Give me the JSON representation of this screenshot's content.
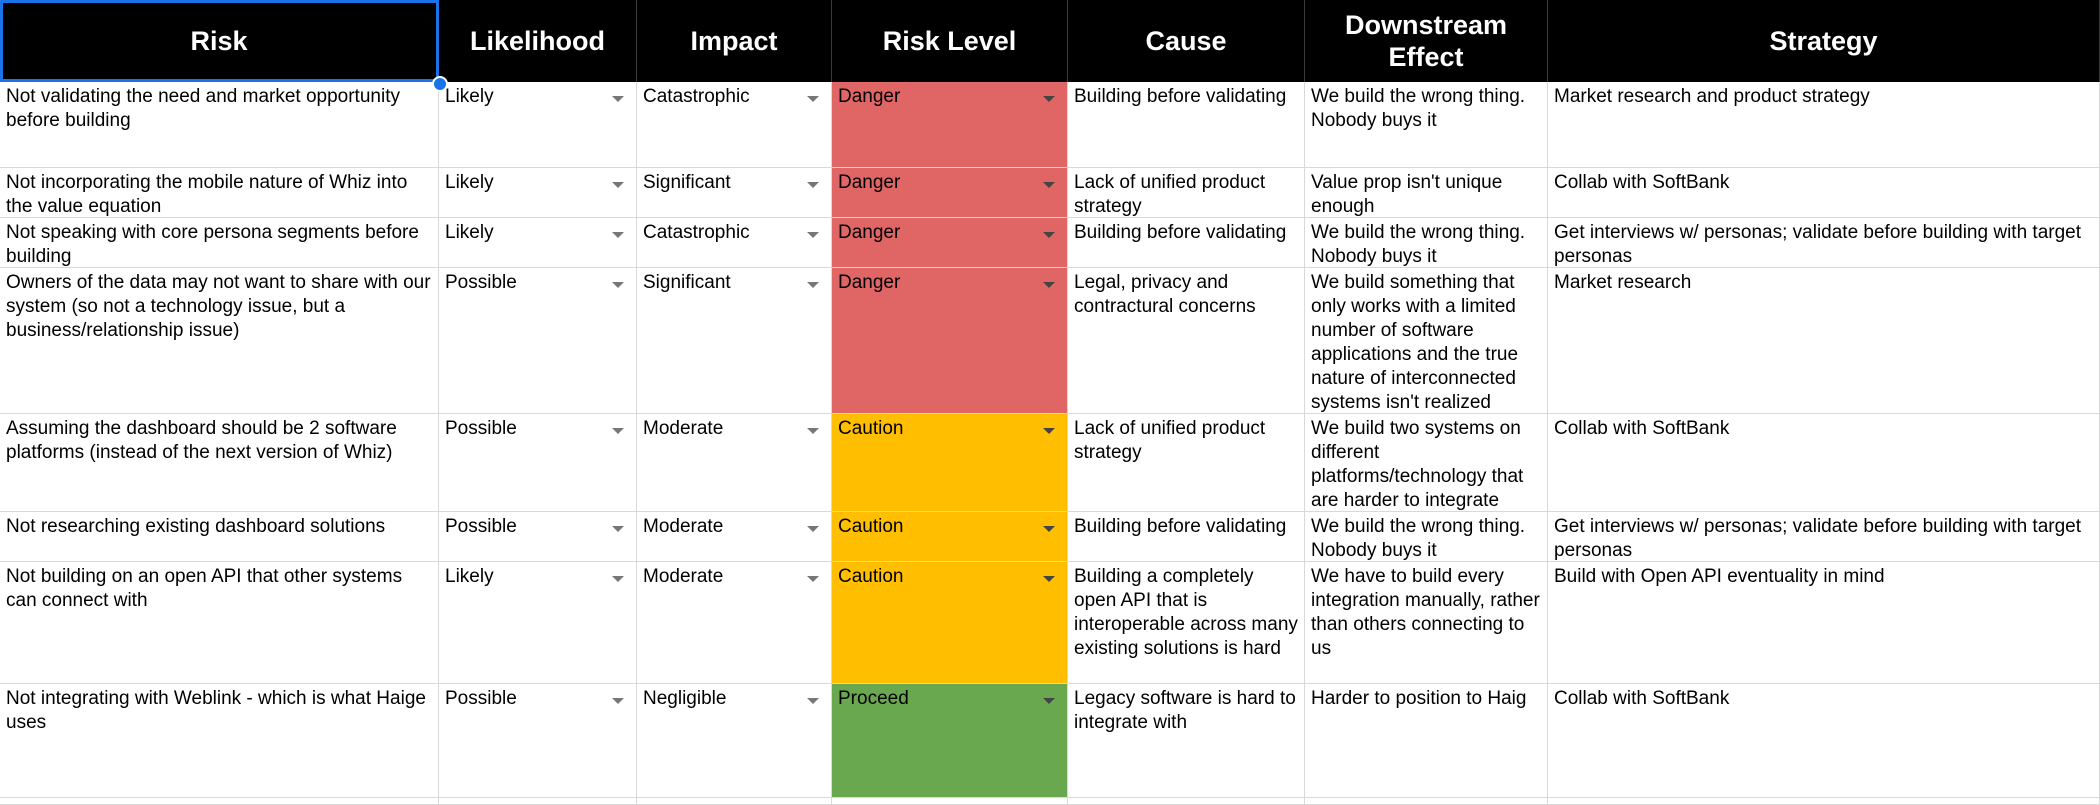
{
  "headers": [
    "Risk",
    "Likelihood",
    "Impact",
    "Risk Level",
    "Cause",
    "Downstream Effect",
    "Strategy"
  ],
  "level_colors": {
    "Danger": "#e06666",
    "Caution": "#ffbf00",
    "Proceed": "#6aa84f"
  },
  "rows": [
    {
      "risk": "Not validating the need and market opportunity before building",
      "likelihood": "Likely",
      "impact": "Catastrophic",
      "level": "Danger",
      "cause": "Building before validating",
      "effect": "We build the wrong thing. Nobody buys it",
      "strategy": "Market research and product strategy"
    },
    {
      "risk": "Not incorporating the mobile nature of Whiz into the value equation",
      "likelihood": "Likely",
      "impact": "Significant",
      "level": "Danger",
      "cause": "Lack of unified product strategy",
      "effect": "Value prop isn't unique enough",
      "strategy": "Collab with SoftBank"
    },
    {
      "risk": "Not speaking with core persona segments before building",
      "likelihood": "Likely",
      "impact": "Catastrophic",
      "level": "Danger",
      "cause": "Building before validating",
      "effect": "We build the wrong thing. Nobody buys it",
      "strategy": "Get interviews w/ personas; validate before building with target personas"
    },
    {
      "risk": "Owners of the data may not want to share with our system (so not a technology issue, but a business/relationship issue)",
      "likelihood": "Possible",
      "impact": "Significant",
      "level": "Danger",
      "cause": "Legal, privacy and contractural concerns",
      "effect": "We build something that only works with a limited number of software applications and the true nature of interconnected systems isn't realized",
      "strategy": "Market research"
    },
    {
      "risk": "Assuming the dashboard should be 2 software platforms (instead of the next version of Whiz)",
      "likelihood": "Possible",
      "impact": "Moderate",
      "level": "Caution",
      "cause": "Lack of unified product strategy",
      "effect": "We build two systems on different platforms/technology that are harder to integrate",
      "strategy": "Collab with SoftBank"
    },
    {
      "risk": "Not researching existing dashboard solutions",
      "likelihood": "Possible",
      "impact": "Moderate",
      "level": "Caution",
      "cause": "Building before validating",
      "effect": "We build the wrong thing. Nobody buys it",
      "strategy": "Get interviews w/ personas; validate before building with target personas"
    },
    {
      "risk": "Not building on an open API that other systems can connect with",
      "likelihood": "Likely",
      "impact": "Moderate",
      "level": "Caution",
      "cause": "Building a completely open API that is interoperable across many existing solutions is hard",
      "effect": "We have to build every integration manually, rather than others connecting to us",
      "strategy": "Build with Open API  eventuality in mind"
    },
    {
      "risk": "Not integrating with Weblink - which is what Haige uses",
      "likelihood": "Possible",
      "impact": "Negligible",
      "level": "Proceed",
      "cause": "Legacy software is hard to integrate with",
      "effect": "Harder to position to Haig",
      "strategy": "Collab with SoftBank"
    }
  ]
}
